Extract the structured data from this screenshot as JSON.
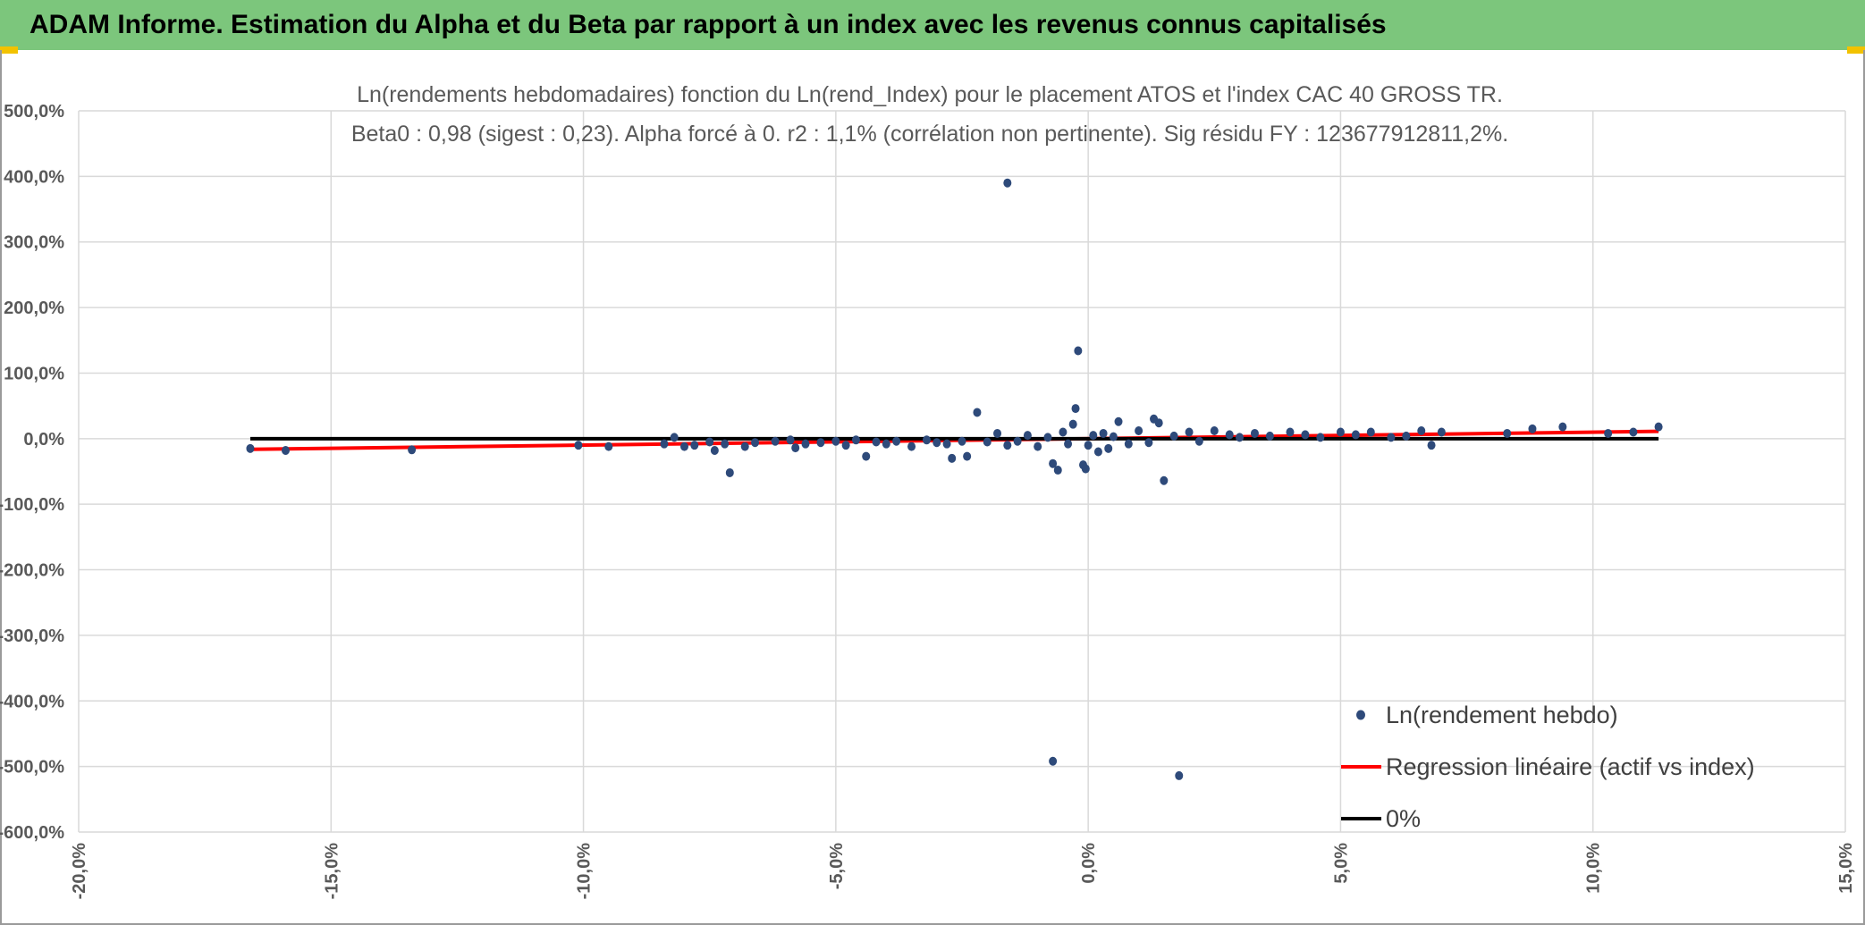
{
  "banner": {
    "title": "ADAM Informe. Estimation du Alpha et du Beta par rapport à un index avec les revenus connus capitalisés",
    "background": "#7cc67c",
    "accent": "#f2c200"
  },
  "chart_data": {
    "type": "scatter",
    "title": "Ln(rendements hebdomadaires) fonction du Ln(rend_Index) pour le placement ATOS et l'index CAC 40 GROSS TR.",
    "subtitle": "Beta0 : 0,98 (sigest : 0,23). Alpha forcé à 0. r2 : 1,1% (corrélation non pertinente). Sig résidu FY : 123677912811,2%.",
    "xlabel": "",
    "ylabel": "",
    "xlim": [
      -20,
      15
    ],
    "ylim": [
      -600,
      500
    ],
    "x_ticks": [
      "-20,0%",
      "-15,0%",
      "-10,0%",
      "-5,0%",
      "0,0%",
      "5,0%",
      "10,0%",
      "15,0%"
    ],
    "y_ticks": [
      "500,0%",
      "400,0%",
      "300,0%",
      "200,0%",
      "100,0%",
      "0,0%",
      "-100,0%",
      "-200,0%",
      "-300,0%",
      "-400,0%",
      "-500,0%",
      "-600,0%"
    ],
    "grid": true,
    "legend_position": "bottom-right",
    "series": [
      {
        "name": "Ln(rendement hebdo)",
        "kind": "scatter",
        "color": "#2e4a7a",
        "points": [
          [
            -16.6,
            -15
          ],
          [
            -15.9,
            -18
          ],
          [
            -13.4,
            -17
          ],
          [
            -10.1,
            -10
          ],
          [
            -9.5,
            -12
          ],
          [
            -8.4,
            -8
          ],
          [
            -8.2,
            2
          ],
          [
            -8.0,
            -12
          ],
          [
            -7.8,
            -10
          ],
          [
            -7.5,
            -5
          ],
          [
            -7.4,
            -18
          ],
          [
            -7.2,
            -8
          ],
          [
            -7.1,
            -52
          ],
          [
            -6.8,
            -12
          ],
          [
            -6.6,
            -6
          ],
          [
            -6.2,
            -4
          ],
          [
            -5.9,
            -2
          ],
          [
            -5.8,
            -14
          ],
          [
            -5.6,
            -8
          ],
          [
            -5.3,
            -6
          ],
          [
            -5.0,
            -4
          ],
          [
            -4.8,
            -10
          ],
          [
            -4.6,
            -2
          ],
          [
            -4.4,
            -27
          ],
          [
            -4.2,
            -5
          ],
          [
            -4.0,
            -8
          ],
          [
            -3.8,
            -4
          ],
          [
            -3.5,
            -12
          ],
          [
            -3.2,
            -2
          ],
          [
            -3.0,
            -6
          ],
          [
            -2.8,
            -8
          ],
          [
            -2.7,
            -30
          ],
          [
            -2.5,
            -4
          ],
          [
            -2.4,
            -27
          ],
          [
            -2.2,
            40
          ],
          [
            -2.0,
            -5
          ],
          [
            -1.8,
            8
          ],
          [
            -1.6,
            -10
          ],
          [
            -1.6,
            390
          ],
          [
            -1.4,
            -4
          ],
          [
            -1.2,
            5
          ],
          [
            -1.0,
            -12
          ],
          [
            -0.8,
            2
          ],
          [
            -0.7,
            -38
          ],
          [
            -0.6,
            -48
          ],
          [
            -0.7,
            -492
          ],
          [
            -0.5,
            10
          ],
          [
            -0.4,
            -8
          ],
          [
            -0.3,
            22
          ],
          [
            -0.25,
            46
          ],
          [
            -0.2,
            134
          ],
          [
            -0.1,
            -40
          ],
          [
            -0.05,
            -46
          ],
          [
            0.0,
            -10
          ],
          [
            0.1,
            5
          ],
          [
            0.2,
            -20
          ],
          [
            0.3,
            8
          ],
          [
            0.4,
            -15
          ],
          [
            0.5,
            3
          ],
          [
            0.6,
            26
          ],
          [
            0.8,
            -8
          ],
          [
            1.0,
            12
          ],
          [
            1.2,
            -6
          ],
          [
            1.3,
            30
          ],
          [
            1.4,
            24
          ],
          [
            1.5,
            -64
          ],
          [
            1.7,
            4
          ],
          [
            1.8,
            -514
          ],
          [
            2.0,
            10
          ],
          [
            2.2,
            -4
          ],
          [
            2.5,
            12
          ],
          [
            2.8,
            6
          ],
          [
            3.0,
            2
          ],
          [
            3.3,
            8
          ],
          [
            3.6,
            4
          ],
          [
            4.0,
            10
          ],
          [
            4.3,
            6
          ],
          [
            4.6,
            2
          ],
          [
            5.0,
            10
          ],
          [
            5.3,
            6
          ],
          [
            5.6,
            10
          ],
          [
            6.0,
            2
          ],
          [
            6.3,
            4
          ],
          [
            6.6,
            12
          ],
          [
            6.8,
            -10
          ],
          [
            7.0,
            10
          ],
          [
            8.3,
            8
          ],
          [
            8.8,
            15
          ],
          [
            9.4,
            18
          ],
          [
            10.3,
            8
          ],
          [
            10.8,
            10
          ],
          [
            11.3,
            18
          ]
        ]
      },
      {
        "name": "Regression linéaire (actif vs index)",
        "kind": "line",
        "color": "#ff0000",
        "points": [
          [
            -16.6,
            -16.3
          ],
          [
            11.3,
            11.1
          ]
        ]
      },
      {
        "name": "0%",
        "kind": "line",
        "color": "#000000",
        "points": [
          [
            -16.6,
            0
          ],
          [
            11.3,
            0
          ]
        ]
      }
    ]
  }
}
